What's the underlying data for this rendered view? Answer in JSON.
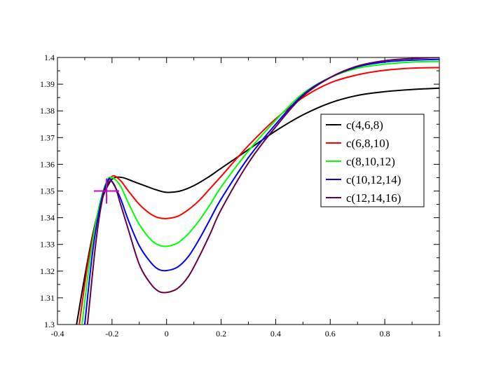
{
  "chart_data": {
    "type": "line",
    "title": "",
    "xlabel": "",
    "ylabel": "",
    "xlim": [
      -0.4,
      1.0
    ],
    "ylim": [
      1.3,
      1.4
    ],
    "x_ticks": [
      -0.4,
      -0.2,
      0,
      0.2,
      0.4,
      0.6,
      0.8,
      1.0
    ],
    "x_tick_labels": [
      "-0.4",
      "-0.2",
      "0",
      "0.2",
      "0.4",
      "0.6",
      "0.8",
      "1"
    ],
    "y_ticks": [
      1.3,
      1.31,
      1.32,
      1.33,
      1.34,
      1.35,
      1.36,
      1.37,
      1.38,
      1.39,
      1.4
    ],
    "y_tick_labels": [
      "1.3",
      "1.31",
      "1.32",
      "1.33",
      "1.34",
      "1.35",
      "1.36",
      "1.37",
      "1.38",
      "1.39",
      "1.4"
    ],
    "grid": false,
    "legend_position": "right",
    "marker": {
      "x": -0.22,
      "y": 1.35,
      "color": "#cc00cc",
      "shape": "cross"
    },
    "series": [
      {
        "name": "c(4,6,8)",
        "color": "#000000",
        "x": [
          -0.33,
          -0.3,
          -0.27,
          -0.24,
          -0.21,
          -0.19,
          -0.16,
          -0.12,
          -0.08,
          -0.04,
          0.0,
          0.05,
          0.1,
          0.15,
          0.2,
          0.3,
          0.4,
          0.5,
          0.6,
          0.7,
          0.8,
          0.9,
          1.0
        ],
        "y": [
          1.3,
          1.318,
          1.334,
          1.346,
          1.353,
          1.355,
          1.355,
          1.3535,
          1.352,
          1.3505,
          1.3495,
          1.35,
          1.352,
          1.355,
          1.3585,
          1.3655,
          1.3725,
          1.3785,
          1.383,
          1.3858,
          1.3872,
          1.388,
          1.3885
        ]
      },
      {
        "name": "c(6,8,10)",
        "color": "#ff0000",
        "x": [
          -0.32,
          -0.29,
          -0.26,
          -0.23,
          -0.2,
          -0.17,
          -0.14,
          -0.1,
          -0.06,
          -0.03,
          0.0,
          0.04,
          0.08,
          0.12,
          0.16,
          0.2,
          0.3,
          0.4,
          0.5,
          0.6,
          0.7,
          0.8,
          0.9,
          1.0
        ],
        "y": [
          1.3,
          1.322,
          1.338,
          1.35,
          1.3555,
          1.354,
          1.35,
          1.345,
          1.3415,
          1.34,
          1.3397,
          1.3405,
          1.343,
          1.3465,
          1.351,
          1.3555,
          1.367,
          1.377,
          1.385,
          1.3905,
          1.3935,
          1.3952,
          1.396,
          1.3962
        ]
      },
      {
        "name": "c(8,10,12)",
        "color": "#00ff00",
        "x": [
          -0.31,
          -0.28,
          -0.25,
          -0.22,
          -0.2,
          -0.17,
          -0.14,
          -0.1,
          -0.06,
          -0.03,
          0.0,
          0.04,
          0.08,
          0.12,
          0.16,
          0.2,
          0.3,
          0.4,
          0.5,
          0.6,
          0.7,
          0.8,
          0.9,
          1.0
        ],
        "y": [
          1.3,
          1.325,
          1.343,
          1.3535,
          1.355,
          1.352,
          1.3455,
          1.3375,
          1.332,
          1.3298,
          1.3293,
          1.3305,
          1.334,
          1.339,
          1.345,
          1.3515,
          1.365,
          1.3765,
          1.3865,
          1.3925,
          1.396,
          1.3975,
          1.3983,
          1.3985
        ]
      },
      {
        "name": "c(10,12,14)",
        "color": "#0000ff",
        "x": [
          -0.3,
          -0.27,
          -0.24,
          -0.215,
          -0.2,
          -0.17,
          -0.14,
          -0.1,
          -0.06,
          -0.03,
          0.0,
          0.04,
          0.08,
          0.12,
          0.16,
          0.2,
          0.3,
          0.4,
          0.5,
          0.6,
          0.7,
          0.8,
          0.9,
          1.0
        ],
        "y": [
          1.3,
          1.328,
          1.346,
          1.354,
          1.3535,
          1.3475,
          1.339,
          1.3295,
          1.3235,
          1.3207,
          1.3202,
          1.3215,
          1.3255,
          1.332,
          1.3395,
          1.347,
          1.3625,
          1.375,
          1.386,
          1.3925,
          1.3965,
          1.3983,
          1.399,
          1.3993
        ]
      },
      {
        "name": "c(12,14,16)",
        "color": "#660044",
        "x": [
          -0.29,
          -0.26,
          -0.235,
          -0.21,
          -0.19,
          -0.17,
          -0.14,
          -0.1,
          -0.06,
          -0.03,
          0.0,
          0.04,
          0.08,
          0.12,
          0.16,
          0.2,
          0.3,
          0.4,
          0.5,
          0.6,
          0.7,
          0.8,
          0.9,
          1.0
        ],
        "y": [
          1.3,
          1.33,
          1.347,
          1.3535,
          1.352,
          1.3455,
          1.3355,
          1.3225,
          1.3155,
          1.3125,
          1.312,
          1.3135,
          1.318,
          1.3255,
          1.334,
          1.343,
          1.3605,
          1.374,
          1.3855,
          1.3925,
          1.3968,
          1.3988,
          1.3996,
          1.4
        ]
      }
    ]
  }
}
